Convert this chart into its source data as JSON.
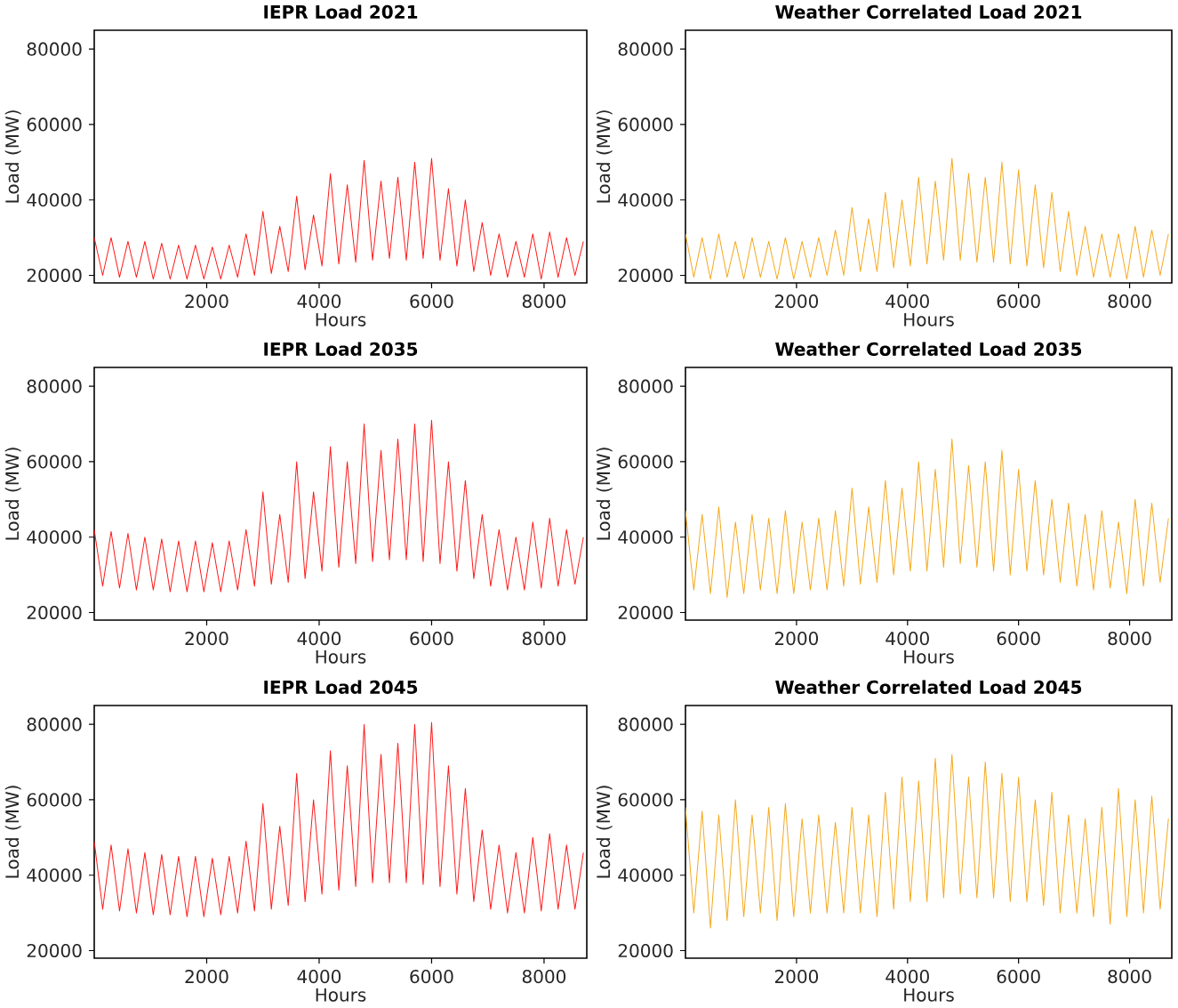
{
  "chart_data": [
    {
      "type": "line",
      "title": "IEPR Load 2021",
      "xlabel": "Hours",
      "ylabel": "Load (MW)",
      "xlim": [
        0,
        8760
      ],
      "ylim": [
        18000,
        85000
      ],
      "xticks": [
        2000,
        4000,
        6000,
        8000
      ],
      "yticks": [
        20000,
        40000,
        60000,
        80000
      ],
      "x": [
        0,
        150,
        300,
        450,
        600,
        750,
        900,
        1050,
        1200,
        1350,
        1500,
        1650,
        1800,
        1950,
        2100,
        2250,
        2400,
        2550,
        2700,
        2850,
        3000,
        3150,
        3300,
        3450,
        3600,
        3750,
        3900,
        4050,
        4200,
        4350,
        4500,
        4650,
        4800,
        4950,
        5100,
        5250,
        5400,
        5550,
        5700,
        5850,
        6000,
        6150,
        6300,
        6450,
        6600,
        6750,
        6900,
        7050,
        7200,
        7350,
        7500,
        7650,
        7800,
        7950,
        8100,
        8250,
        8400,
        8550,
        8700
      ],
      "series": [
        {
          "color": "#ff1a1a",
          "values": [
            30000,
            20000,
            30000,
            19500,
            29000,
            19500,
            29000,
            19000,
            28500,
            19000,
            28000,
            19000,
            28000,
            19000,
            27500,
            19000,
            28000,
            19500,
            31000,
            20000,
            37000,
            20500,
            33000,
            21000,
            41000,
            21500,
            36000,
            22500,
            47000,
            23000,
            44000,
            23500,
            50500,
            24000,
            45000,
            24500,
            46000,
            24000,
            50000,
            24500,
            51000,
            24000,
            43000,
            22500,
            40000,
            21000,
            34000,
            20000,
            31000,
            19500,
            29000,
            19500,
            31000,
            19000,
            31500,
            19500,
            30000,
            20000,
            29000
          ]
        }
      ]
    },
    {
      "type": "line",
      "title": "Weather Correlated Load 2021",
      "xlabel": "Hours",
      "ylabel": "Load (MW)",
      "xlim": [
        0,
        8760
      ],
      "ylim": [
        18000,
        85000
      ],
      "xticks": [
        2000,
        4000,
        6000,
        8000
      ],
      "yticks": [
        20000,
        40000,
        60000,
        80000
      ],
      "x": [
        0,
        150,
        300,
        450,
        600,
        750,
        900,
        1050,
        1200,
        1350,
        1500,
        1650,
        1800,
        1950,
        2100,
        2250,
        2400,
        2550,
        2700,
        2850,
        3000,
        3150,
        3300,
        3450,
        3600,
        3750,
        3900,
        4050,
        4200,
        4350,
        4500,
        4650,
        4800,
        4950,
        5100,
        5250,
        5400,
        5550,
        5700,
        5850,
        6000,
        6150,
        6300,
        6450,
        6600,
        6750,
        6900,
        7050,
        7200,
        7350,
        7500,
        7650,
        7800,
        7950,
        8100,
        8250,
        8400,
        8550,
        8700
      ],
      "series": [
        {
          "color": "#f5a81c",
          "values": [
            31000,
            19500,
            30000,
            19000,
            31000,
            19500,
            29000,
            19000,
            30000,
            19500,
            29000,
            19000,
            30000,
            19000,
            29000,
            19500,
            30000,
            20000,
            32000,
            20000,
            38000,
            21000,
            35000,
            21000,
            42000,
            22000,
            40000,
            22500,
            46000,
            23000,
            45000,
            24000,
            51000,
            24000,
            47000,
            23500,
            46000,
            23500,
            50000,
            23000,
            48000,
            22500,
            44000,
            22000,
            42000,
            21000,
            37000,
            20000,
            33000,
            19500,
            31000,
            19500,
            31000,
            19000,
            33000,
            19500,
            32000,
            20000,
            31000
          ]
        }
      ]
    },
    {
      "type": "line",
      "title": "IEPR Load 2035",
      "xlabel": "Hours",
      "ylabel": "Load (MW)",
      "xlim": [
        0,
        8760
      ],
      "ylim": [
        18000,
        85000
      ],
      "xticks": [
        2000,
        4000,
        6000,
        8000
      ],
      "yticks": [
        20000,
        40000,
        60000,
        80000
      ],
      "x": [
        0,
        150,
        300,
        450,
        600,
        750,
        900,
        1050,
        1200,
        1350,
        1500,
        1650,
        1800,
        1950,
        2100,
        2250,
        2400,
        2550,
        2700,
        2850,
        3000,
        3150,
        3300,
        3450,
        3600,
        3750,
        3900,
        4050,
        4200,
        4350,
        4500,
        4650,
        4800,
        4950,
        5100,
        5250,
        5400,
        5550,
        5700,
        5850,
        6000,
        6150,
        6300,
        6450,
        6600,
        6750,
        6900,
        7050,
        7200,
        7350,
        7500,
        7650,
        7800,
        7950,
        8100,
        8250,
        8400,
        8550,
        8700
      ],
      "series": [
        {
          "color": "#ff1a1a",
          "values": [
            42000,
            27000,
            41500,
            26500,
            41000,
            26000,
            40000,
            26000,
            39500,
            25500,
            39000,
            25500,
            39000,
            25500,
            38500,
            25500,
            39000,
            26000,
            42000,
            27000,
            52000,
            27500,
            46000,
            28000,
            60000,
            29000,
            52000,
            31000,
            64000,
            32000,
            60000,
            33000,
            70000,
            33500,
            63000,
            34000,
            66000,
            34000,
            70000,
            33500,
            71000,
            33000,
            60000,
            31000,
            55000,
            29000,
            46000,
            27000,
            42000,
            26000,
            40000,
            26000,
            44000,
            26500,
            45000,
            27000,
            42000,
            27500,
            40000
          ]
        }
      ]
    },
    {
      "type": "line",
      "title": "Weather Correlated Load 2035",
      "xlabel": "Hours",
      "ylabel": "Load (MW)",
      "xlim": [
        0,
        8760
      ],
      "ylim": [
        18000,
        85000
      ],
      "xticks": [
        2000,
        4000,
        6000,
        8000
      ],
      "yticks": [
        20000,
        40000,
        60000,
        80000
      ],
      "x": [
        0,
        150,
        300,
        450,
        600,
        750,
        900,
        1050,
        1200,
        1350,
        1500,
        1650,
        1800,
        1950,
        2100,
        2250,
        2400,
        2550,
        2700,
        2850,
        3000,
        3150,
        3300,
        3450,
        3600,
        3750,
        3900,
        4050,
        4200,
        4350,
        4500,
        4650,
        4800,
        4950,
        5100,
        5250,
        5400,
        5550,
        5700,
        5850,
        6000,
        6150,
        6300,
        6450,
        6600,
        6750,
        6900,
        7050,
        7200,
        7350,
        7500,
        7650,
        7800,
        7950,
        8100,
        8250,
        8400,
        8550,
        8700
      ],
      "series": [
        {
          "color": "#f5a81c",
          "values": [
            47000,
            26000,
            46000,
            25000,
            48000,
            24000,
            44000,
            25000,
            46000,
            26000,
            45000,
            25000,
            47000,
            25000,
            44000,
            26000,
            45000,
            26000,
            47000,
            27000,
            53000,
            27500,
            48000,
            28000,
            55000,
            30000,
            53000,
            31000,
            60000,
            31000,
            58000,
            32000,
            66000,
            33000,
            59000,
            32000,
            60000,
            31000,
            63000,
            30000,
            58000,
            31000,
            55000,
            30000,
            50000,
            28000,
            49000,
            27000,
            46000,
            26000,
            47000,
            26500,
            44000,
            25000,
            50000,
            27000,
            49000,
            28000,
            45000
          ]
        }
      ]
    },
    {
      "type": "line",
      "title": "IEPR Load 2045",
      "xlabel": "Hours",
      "ylabel": "Load (MW)",
      "xlim": [
        0,
        8760
      ],
      "ylim": [
        18000,
        85000
      ],
      "xticks": [
        2000,
        4000,
        6000,
        8000
      ],
      "yticks": [
        20000,
        40000,
        60000,
        80000
      ],
      "x": [
        0,
        150,
        300,
        450,
        600,
        750,
        900,
        1050,
        1200,
        1350,
        1500,
        1650,
        1800,
        1950,
        2100,
        2250,
        2400,
        2550,
        2700,
        2850,
        3000,
        3150,
        3300,
        3450,
        3600,
        3750,
        3900,
        4050,
        4200,
        4350,
        4500,
        4650,
        4800,
        4950,
        5100,
        5250,
        5400,
        5550,
        5700,
        5850,
        6000,
        6150,
        6300,
        6450,
        6600,
        6750,
        6900,
        7050,
        7200,
        7350,
        7500,
        7650,
        7800,
        7950,
        8100,
        8250,
        8400,
        8550,
        8700
      ],
      "series": [
        {
          "color": "#ff1a1a",
          "values": [
            49000,
            31000,
            48000,
            30500,
            47000,
            30000,
            46000,
            29500,
            45500,
            29500,
            45000,
            29000,
            45000,
            29000,
            44500,
            29500,
            45000,
            30000,
            49000,
            30500,
            59000,
            31000,
            53000,
            32000,
            67000,
            33000,
            60000,
            35000,
            73000,
            36000,
            69000,
            37000,
            80000,
            38000,
            72000,
            38000,
            75000,
            38000,
            80000,
            37500,
            80500,
            37000,
            69000,
            35000,
            63000,
            33000,
            52000,
            31000,
            48000,
            30000,
            46000,
            30000,
            50000,
            30500,
            51000,
            31000,
            48000,
            31000,
            46000
          ]
        }
      ]
    },
    {
      "type": "line",
      "title": "Weather Correlated Load 2045",
      "xlabel": "Hours",
      "ylabel": "Load (MW)",
      "xlim": [
        0,
        8760
      ],
      "ylim": [
        18000,
        85000
      ],
      "xticks": [
        2000,
        4000,
        6000,
        8000
      ],
      "yticks": [
        20000,
        40000,
        60000,
        80000
      ],
      "x": [
        0,
        150,
        300,
        450,
        600,
        750,
        900,
        1050,
        1200,
        1350,
        1500,
        1650,
        1800,
        1950,
        2100,
        2250,
        2400,
        2550,
        2700,
        2850,
        3000,
        3150,
        3300,
        3450,
        3600,
        3750,
        3900,
        4050,
        4200,
        4350,
        4500,
        4650,
        4800,
        4950,
        5100,
        5250,
        5400,
        5550,
        5700,
        5850,
        6000,
        6150,
        6300,
        6450,
        6600,
        6750,
        6900,
        7050,
        7200,
        7350,
        7500,
        7650,
        7800,
        7950,
        8100,
        8250,
        8400,
        8550,
        8700
      ],
      "series": [
        {
          "color": "#f5a81c",
          "values": [
            58000,
            30000,
            57000,
            26000,
            56000,
            28000,
            60000,
            29000,
            56000,
            30000,
            58000,
            28000,
            59000,
            29000,
            55000,
            30000,
            56000,
            30000,
            54000,
            30000,
            58000,
            30000,
            56000,
            29000,
            62000,
            31000,
            66000,
            33000,
            65000,
            33000,
            71000,
            34000,
            72000,
            35000,
            66000,
            34000,
            70000,
            34000,
            67000,
            33000,
            66000,
            33000,
            60000,
            32000,
            62000,
            30000,
            56000,
            30000,
            55000,
            29000,
            58000,
            27000,
            63000,
            29000,
            60000,
            30000,
            61000,
            31000,
            55000
          ]
        }
      ]
    }
  ]
}
